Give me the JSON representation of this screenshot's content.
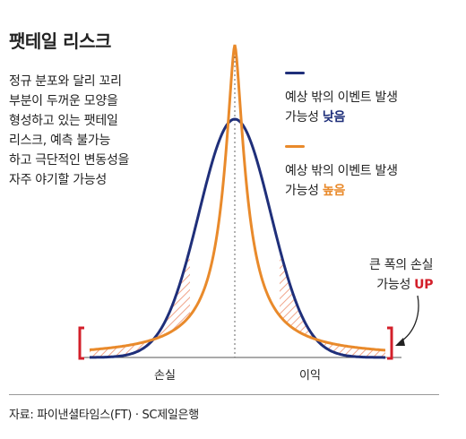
{
  "title": "팻테일 리스크",
  "description": [
    "정규 분포와 달리 꼬리",
    "부분이 두꺼운 모양을",
    "형성하고 있는 팻테일",
    "리스크, 예측 불가능",
    "하고 극단적인 변동성을",
    "자주 야기할 가능성"
  ],
  "legend": [
    {
      "line1": "예상 밖의 이벤트 발생",
      "line2_prefix": "가능성 ",
      "line2_highlight": "낮음",
      "color": "#1f2f7a",
      "icon": "navy-line"
    },
    {
      "line1": "예상 밖의 이벤트 발생",
      "line2_prefix": "가능성 ",
      "line2_highlight": "높음",
      "color": "#e98a2b",
      "icon": "orange-line"
    }
  ],
  "risk_note": {
    "line1": "큰 폭의 손실",
    "line2_prefix": "가능성 ",
    "line2_highlight": "UP"
  },
  "axis": {
    "left_label": "손실",
    "right_label": "이익"
  },
  "source": "자료: 파이낸셜타임스(FT) · SC제일은행",
  "colors": {
    "normal": "#1f2f7a",
    "fat_tail": "#e98a2b",
    "tail_bracket": "#d31f2a",
    "hatch": "#f0a58a"
  }
}
